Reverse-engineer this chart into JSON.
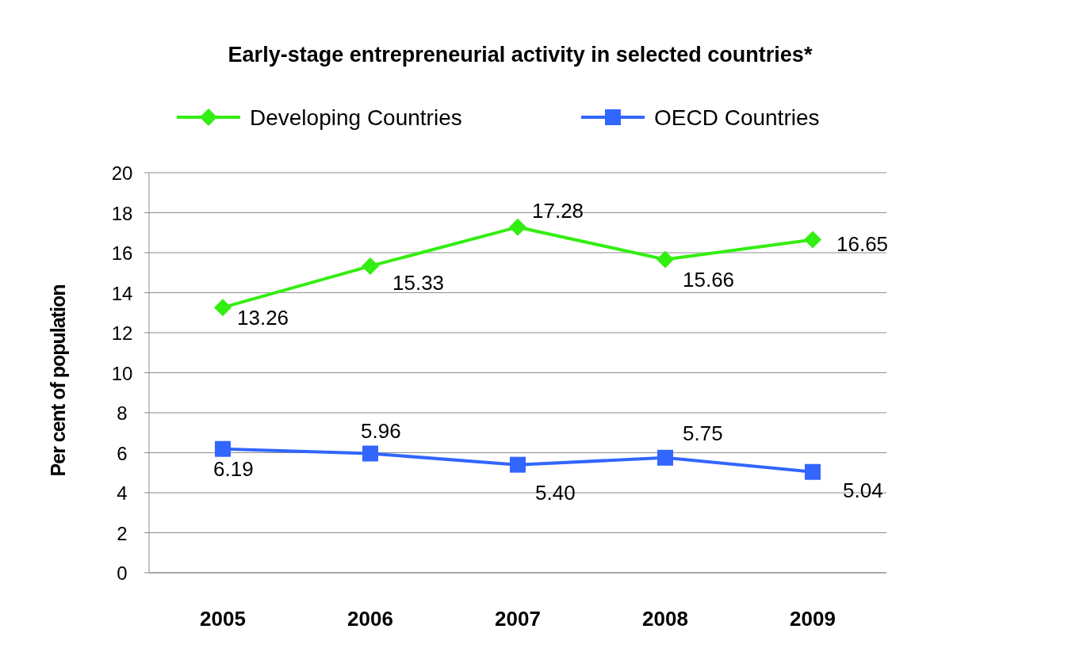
{
  "chart_data": {
    "type": "line",
    "title": "Early-stage entrepreneurial activity in selected countries*",
    "ylabel": "Per cent of population",
    "categories": [
      "2005",
      "2006",
      "2007",
      "2008",
      "2009"
    ],
    "series": [
      {
        "name": "Developing Countries",
        "color": "#33ee11",
        "marker": "diamond",
        "values": [
          13.26,
          15.33,
          17.28,
          15.66,
          16.65
        ],
        "value_labels": [
          "13.26",
          "15.33",
          "17.28",
          "15.66",
          "16.65"
        ]
      },
      {
        "name": "OECD Countries",
        "color": "#3366ff",
        "marker": "square",
        "values": [
          6.19,
          5.96,
          5.4,
          5.75,
          5.04
        ],
        "value_labels": [
          "6.19",
          "5.96",
          "5.40",
          "5.75",
          "5.04"
        ]
      }
    ],
    "ylim": [
      0,
      20
    ],
    "yticks": [
      0,
      2,
      4,
      6,
      8,
      10,
      12,
      14,
      16,
      18,
      20
    ],
    "grid": "y",
    "legend": "top",
    "line_style": "solid"
  }
}
